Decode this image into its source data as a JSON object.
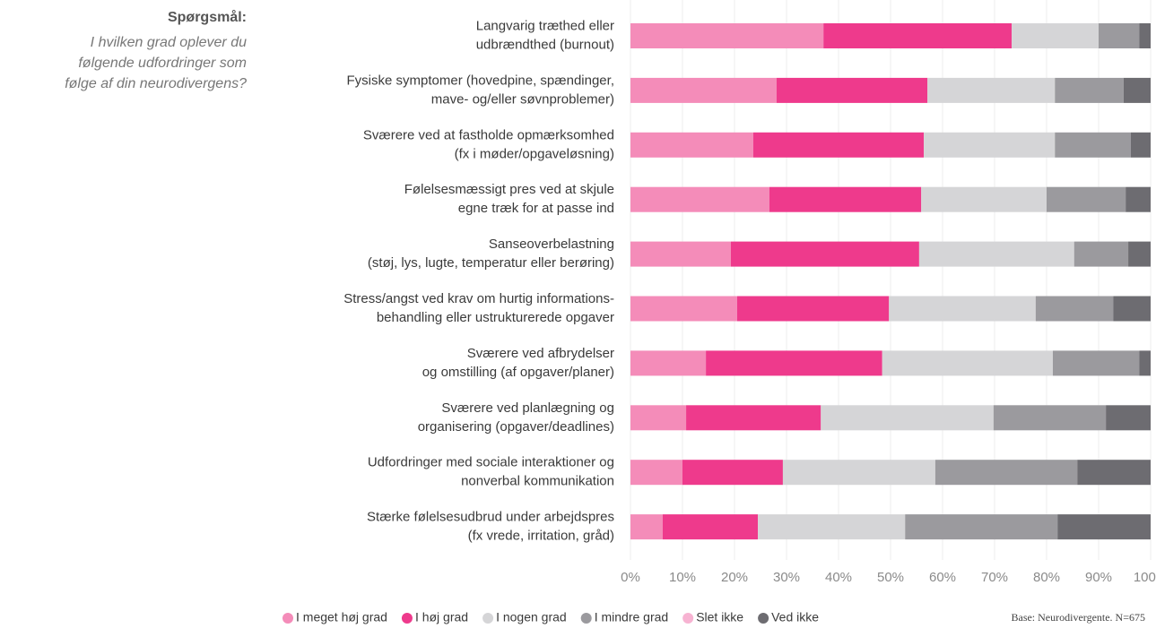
{
  "question_label": "Spørgsmål:",
  "question_text": [
    "I hvilken grad oplever du",
    "følgende udfordringer som",
    "følge af din neurodivergens?"
  ],
  "base_note": "Base: Neurodivergente. N=675",
  "chart_data": {
    "type": "stacked-bar-horizontal",
    "categories": [
      [
        "Langvarig træthed eller",
        "udbrændthed (burnout)"
      ],
      [
        "Fysiske symptomer (hovedpine, spændinger,",
        "mave- og/eller søvnproblemer)"
      ],
      [
        "Sværere ved at fastholde opmærksomhed",
        "(fx i møder/opgaveløsning)"
      ],
      [
        "Følelsesmæssigt pres ved at skjule",
        "egne træk for at passe ind"
      ],
      [
        "Sanseoverbelastning",
        "(støj, lys, lugte, temperatur eller berøring)"
      ],
      [
        "Stress/angst ved krav om hurtig informations-",
        "behandling eller ustrukturerede opgaver"
      ],
      [
        "Sværere ved afbrydelser",
        "og omstilling (af opgaver/planer)"
      ],
      [
        "Sværere ved planlægning og",
        "organisering (opgaver/deadlines)"
      ],
      [
        "Udfordringer med sociale interaktioner og",
        "nonverbal kommunikation"
      ],
      [
        "Stærke følelsesudbrud under arbejdspres",
        "(fx vrede, irritation, gråd)"
      ]
    ],
    "series": [
      {
        "name": "I meget høj grad",
        "color": "#f48cb9",
        "values": [
          37.1,
          28.1,
          23.6,
          26.7,
          19.3,
          20.5,
          14.5,
          10.7,
          10.0,
          6.2
        ]
      },
      {
        "name": "I høj grad",
        "color": "#ee3a8c",
        "values": [
          36.2,
          29.0,
          32.8,
          29.2,
          36.2,
          29.2,
          33.9,
          25.9,
          19.3,
          18.3
        ]
      },
      {
        "name": "I nogen grad",
        "color": "#d5d5d7",
        "values": [
          16.7,
          24.5,
          25.2,
          24.1,
          29.8,
          28.2,
          32.8,
          33.2,
          29.3,
          28.3
        ]
      },
      {
        "name": "I mindre grad",
        "color": "#9b9a9e",
        "values": [
          7.8,
          13.2,
          14.6,
          15.2,
          10.4,
          14.9,
          16.6,
          21.6,
          27.3,
          29.3
        ]
      },
      {
        "name": "Slet ikke",
        "color": "#f7b3d2",
        "values": [
          0,
          0,
          0,
          0,
          0,
          0,
          0,
          0,
          0,
          0
        ]
      },
      {
        "name": "Ved ikke",
        "color": "#6d6c71",
        "values": [
          2.2,
          5.2,
          3.8,
          4.8,
          4.3,
          7.2,
          2.2,
          8.6,
          14.1,
          17.9
        ]
      }
    ],
    "xlim": [
      0,
      100
    ],
    "xticks": [
      {
        "value": 0,
        "label": "0%"
      },
      {
        "value": 10,
        "label": "10%"
      },
      {
        "value": 20,
        "label": "20%"
      },
      {
        "value": 30,
        "label": "30%"
      },
      {
        "value": 40,
        "label": "40%"
      },
      {
        "value": 50,
        "label": "50%"
      },
      {
        "value": 60,
        "label": "60%"
      },
      {
        "value": 70,
        "label": "70%"
      },
      {
        "value": 80,
        "label": "80%"
      },
      {
        "value": 90,
        "label": "90%"
      },
      {
        "value": 100,
        "label": "100%"
      }
    ],
    "grid": true,
    "legend": "bottom"
  }
}
